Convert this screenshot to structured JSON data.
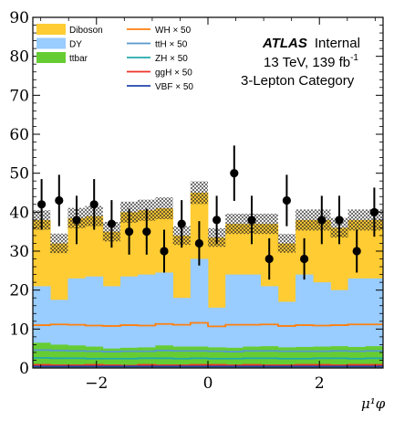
{
  "chart_data": {
    "type": "area",
    "xlabel": "μ¹φ",
    "ylabel": "",
    "xlim": [
      -3.1416,
      3.1416
    ],
    "ylim": [
      0,
      90
    ],
    "xticks": [
      -2,
      0,
      2
    ],
    "xtick_labels": [
      "−2",
      "0",
      "2"
    ],
    "yticks": [
      0,
      10,
      20,
      30,
      40,
      50,
      60,
      70,
      80,
      90
    ],
    "ytick_labels": [
      "0",
      "10",
      "20",
      "30",
      "40",
      "50",
      "60",
      "70",
      "80",
      "90"
    ],
    "bin_edges": [
      -3.1416,
      -2.8274,
      -2.5133,
      -2.1991,
      -1.885,
      -1.5708,
      -1.2566,
      -0.9425,
      -0.6283,
      -0.3142,
      0.0,
      0.3142,
      0.6283,
      0.9425,
      1.2566,
      1.5708,
      1.885,
      2.1991,
      2.5133,
      2.8274,
      3.1416
    ],
    "annotations": {
      "atlas": "ATLAS",
      "internal": "Internal",
      "energy": "13 TeV, 139 fb",
      "energy_sup": "-1",
      "category": "3-Lepton Category"
    },
    "stack": [
      {
        "name": "ttbar",
        "color": "#66cc33",
        "values": [
          6.5,
          6.0,
          5.8,
          5.5,
          5.0,
          5.2,
          5.3,
          5.8,
          5.5,
          5.5,
          5.3,
          5.2,
          5.5,
          5.6,
          5.3,
          5.4,
          5.5,
          5.6,
          5.4,
          5.6
        ]
      },
      {
        "name": "DY",
        "color": "#99ccff",
        "values": [
          21,
          17.5,
          23,
          23.5,
          21,
          23.5,
          24,
          24.5,
          18,
          28,
          15.5,
          24,
          24,
          21,
          17,
          24,
          22,
          20,
          23,
          23
        ]
      },
      {
        "name": "Diboson",
        "color": "#ffcc33",
        "values": [
          38,
          32,
          38.5,
          39,
          35,
          40,
          40.5,
          41,
          34,
          45,
          33.5,
          37,
          37,
          37,
          32,
          38,
          38,
          36,
          38,
          38
        ]
      }
    ],
    "uncertainty": [
      2.5,
      2.5,
      2.6,
      2.6,
      2.5,
      2.7,
      2.7,
      2.8,
      2.4,
      2.9,
      2.4,
      2.6,
      2.6,
      2.6,
      2.4,
      2.7,
      2.7,
      2.5,
      2.7,
      2.7
    ],
    "signals": [
      {
        "name": "WH × 50",
        "color": "#ff7f0e",
        "values": [
          11,
          11.2,
          11.1,
          10.9,
          10.8,
          11.0,
          10.9,
          11.3,
          11.1,
          11.6,
          10.7,
          11.1,
          11.1,
          11.2,
          10.8,
          11.0,
          10.9,
          11.0,
          11.2,
          11.2
        ]
      },
      {
        "name": "ttH × 50",
        "color": "#5599cc",
        "values": [
          4.6,
          4.5,
          4.4,
          4.3,
          4.2,
          4.3,
          4.3,
          4.5,
          4.4,
          4.4,
          4.3,
          4.2,
          4.4,
          4.4,
          4.3,
          4.3,
          4.3,
          4.4,
          4.3,
          4.4
        ]
      },
      {
        "name": "ZH × 50",
        "color": "#22aaaa",
        "values": [
          2.6,
          2.5,
          2.5,
          2.4,
          2.4,
          2.4,
          2.5,
          2.5,
          2.4,
          2.5,
          2.4,
          2.4,
          2.5,
          2.5,
          2.4,
          2.4,
          2.5,
          2.5,
          2.4,
          2.5
        ]
      },
      {
        "name": "ggH × 50",
        "color": "#ee3322",
        "values": [
          0.8,
          0.7,
          0.7,
          0.8,
          0.7,
          0.6,
          0.8,
          0.7,
          0.7,
          0.8,
          0.8,
          0.7,
          0.8,
          0.7,
          0.7,
          0.8,
          0.8,
          0.7,
          0.8,
          0.8
        ]
      },
      {
        "name": "VBF × 50",
        "color": "#2244aa",
        "values": [
          0.4,
          0.4,
          0.4,
          0.4,
          0.4,
          0.4,
          0.4,
          0.4,
          0.4,
          0.4,
          0.4,
          0.4,
          0.4,
          0.4,
          0.4,
          0.4,
          0.4,
          0.4,
          0.4,
          0.4
        ]
      }
    ],
    "data_points": {
      "x": [
        -2.9845,
        -2.6704,
        -2.3562,
        -2.0421,
        -1.7279,
        -1.4137,
        -1.0996,
        -0.7854,
        -0.4712,
        -0.1571,
        0.1571,
        0.4712,
        0.7854,
        1.0996,
        1.4137,
        1.7279,
        2.0421,
        2.3562,
        2.6704,
        2.9845
      ],
      "y": [
        42,
        43,
        38,
        42,
        37,
        35,
        35,
        30,
        37,
        32,
        38,
        50,
        38,
        28,
        43,
        28,
        38,
        38,
        30,
        40
      ],
      "err": [
        6.5,
        6.6,
        6.2,
        6.5,
        6.1,
        5.9,
        5.9,
        5.5,
        6.1,
        5.7,
        6.2,
        7.1,
        6.2,
        5.3,
        6.6,
        5.3,
        6.2,
        6.2,
        5.5,
        6.3
      ]
    },
    "legend": [
      {
        "label": "Diboson",
        "kind": "box",
        "color": "#ffcc33"
      },
      {
        "label": "DY",
        "kind": "box",
        "color": "#99ccff"
      },
      {
        "label": "ttbar",
        "kind": "box",
        "color": "#66cc33"
      },
      {
        "label": "WH × 50",
        "kind": "line",
        "color": "#ff7f0e"
      },
      {
        "label": "ttH × 50",
        "kind": "line",
        "color": "#5599cc"
      },
      {
        "label": "ZH × 50",
        "kind": "line",
        "color": "#22aaaa"
      },
      {
        "label": "ggH × 50",
        "kind": "line",
        "color": "#ee3322"
      },
      {
        "label": "VBF × 50",
        "kind": "line",
        "color": "#2244aa"
      }
    ],
    "legend_position": "top-left",
    "grid": false
  }
}
